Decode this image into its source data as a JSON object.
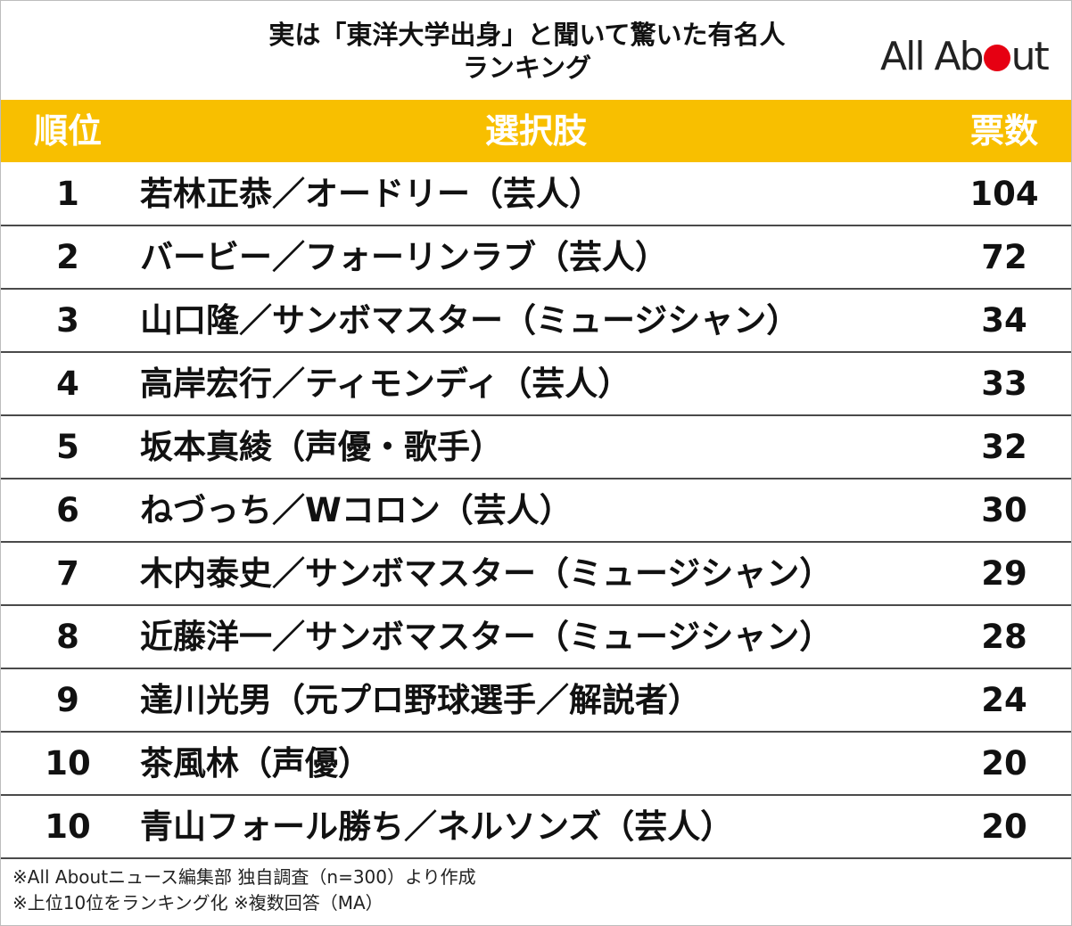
{
  "title": {
    "line1": "実は「東洋大学出身」と聞いて驚いた有名人",
    "line2": "ランキング"
  },
  "logo": {
    "before": "All Ab",
    "after": "ut",
    "dot_color": "#e60012"
  },
  "table": {
    "headers": {
      "rank": "順位",
      "choice": "選択肢",
      "votes": "票数"
    },
    "header_color": "#f8bf00",
    "rows": [
      {
        "rank": "1",
        "name": "若林正恭／オードリー（芸人）",
        "votes": "104"
      },
      {
        "rank": "2",
        "name": "バービー／フォーリンラブ（芸人）",
        "votes": "72"
      },
      {
        "rank": "3",
        "name": "山口隆／サンボマスター（ミュージシャン）",
        "votes": "34"
      },
      {
        "rank": "4",
        "name": "高岸宏行／ティモンディ（芸人）",
        "votes": "33"
      },
      {
        "rank": "5",
        "name": "坂本真綾（声優・歌手）",
        "votes": "32"
      },
      {
        "rank": "6",
        "name": "ねづっち／Wコロン（芸人）",
        "votes": "30"
      },
      {
        "rank": "7",
        "name": "木内泰史／サンボマスター（ミュージシャン）",
        "votes": "29"
      },
      {
        "rank": "8",
        "name": "近藤洋一／サンボマスター（ミュージシャン）",
        "votes": "28"
      },
      {
        "rank": "9",
        "name": "達川光男（元プロ野球選手／解説者）",
        "votes": "24"
      },
      {
        "rank": "10",
        "name": "茶風林（声優）",
        "votes": "20"
      },
      {
        "rank": "10",
        "name": "青山フォール勝ち／ネルソンズ（芸人）",
        "votes": "20"
      }
    ]
  },
  "notes": {
    "line1": "※All Aboutニュース編集部 独自調査（n=300）より作成",
    "line2": "※上位10位をランキング化 ※複数回答（MA）"
  }
}
